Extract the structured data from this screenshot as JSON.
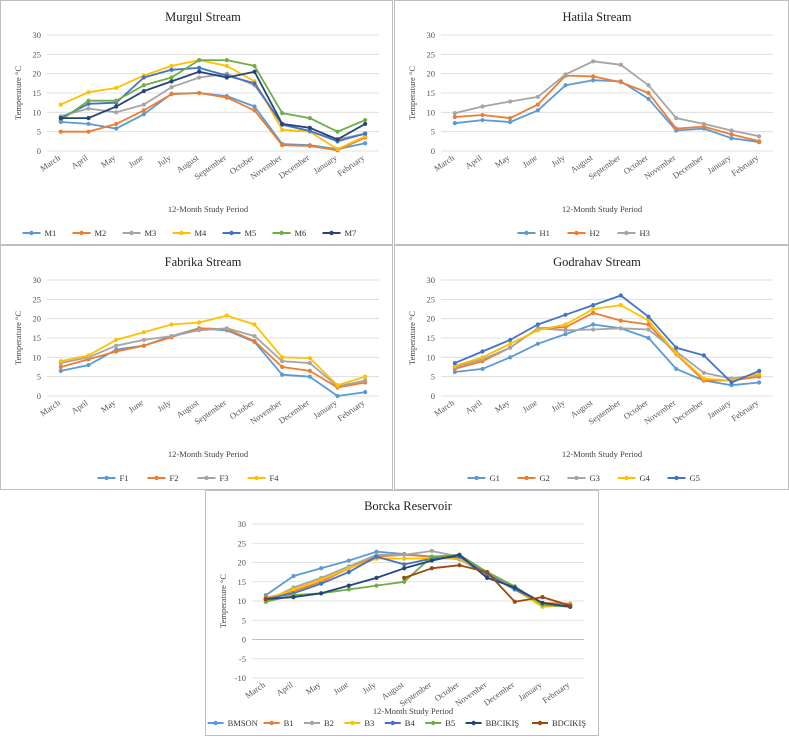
{
  "chart_data": [
    {
      "type": "line",
      "title": "Murgul Stream",
      "xlabel": "12-Month Study Period",
      "ylabel": "Temperature °C",
      "ylim": [
        0,
        30
      ],
      "yticks": [
        0,
        5,
        10,
        15,
        20,
        25,
        30
      ],
      "grid": true,
      "legend": "bottom",
      "categories": [
        "March",
        "April",
        "May",
        "June",
        "July",
        "August",
        "September",
        "October",
        "November",
        "December",
        "January",
        "February"
      ],
      "series": [
        {
          "name": "M1",
          "color": "#5b9bd5",
          "values": [
            7.5,
            7,
            5.8,
            9.5,
            14.8,
            15,
            14.2,
            11.5,
            1.8,
            1.5,
            0.5,
            2
          ]
        },
        {
          "name": "M2",
          "color": "#ed7d31",
          "values": [
            5,
            5,
            7,
            10.5,
            14.7,
            15,
            13.8,
            10.5,
            1.5,
            1.3,
            0.2,
            3.5
          ]
        },
        {
          "name": "M3",
          "color": "#a5a5a5",
          "values": [
            9,
            11,
            10,
            12,
            16.5,
            19,
            20,
            17,
            7,
            5,
            3,
            4.5
          ]
        },
        {
          "name": "M4",
          "color": "#ffc000",
          "values": [
            12,
            15.2,
            16.3,
            19.5,
            22,
            23.5,
            22,
            18,
            5.5,
            5,
            0.5,
            3.8
          ]
        },
        {
          "name": "M5",
          "color": "#4472c4",
          "values": [
            8.5,
            12.2,
            12.5,
            19,
            21,
            21.5,
            19.5,
            17.5,
            6.8,
            5.2,
            2.5,
            4.5
          ]
        },
        {
          "name": "M6",
          "color": "#70ad47",
          "values": [
            8,
            13,
            13,
            17,
            19,
            23.5,
            23.5,
            22,
            9.8,
            8.5,
            5,
            8
          ]
        },
        {
          "name": "M7",
          "color": "#264478",
          "values": [
            8.5,
            8.5,
            11.5,
            15.5,
            18,
            20.5,
            19,
            20.5,
            7,
            6,
            3,
            7
          ]
        }
      ]
    },
    {
      "type": "line",
      "title": "Hatila Stream",
      "xlabel": "12-Month Study Period",
      "ylabel": "Temperature °C",
      "ylim": [
        0,
        30
      ],
      "yticks": [
        0,
        5,
        10,
        15,
        20,
        25,
        30
      ],
      "grid": true,
      "legend": "bottom",
      "categories": [
        "March",
        "April",
        "May",
        "June",
        "July",
        "August",
        "September",
        "October",
        "November",
        "December",
        "January",
        "February"
      ],
      "series": [
        {
          "name": "H1",
          "color": "#5b9bd5",
          "values": [
            7.2,
            8,
            7.5,
            10.5,
            17,
            18.3,
            18,
            13.5,
            5.3,
            5.8,
            3.3,
            2.3
          ]
        },
        {
          "name": "H2",
          "color": "#ed7d31",
          "values": [
            8.8,
            9.3,
            8.5,
            12,
            19.5,
            19.3,
            17.8,
            15,
            5.8,
            6.3,
            4.3,
            2.5
          ]
        },
        {
          "name": "H3",
          "color": "#a5a5a5",
          "values": [
            9.8,
            11.5,
            12.8,
            14,
            19.8,
            23.2,
            22.3,
            17,
            8.5,
            7,
            5.3,
            3.8
          ]
        }
      ]
    },
    {
      "type": "line",
      "title": "Fabrika Stream",
      "xlabel": "12-Month Study Period",
      "ylabel": "Temperature °C",
      "ylim": [
        0,
        30
      ],
      "yticks": [
        0,
        5,
        10,
        15,
        20,
        25,
        30
      ],
      "grid": true,
      "legend": "bottom",
      "categories": [
        "March",
        "April",
        "May",
        "June",
        "July",
        "August",
        "September",
        "October",
        "November",
        "December",
        "January",
        "February"
      ],
      "series": [
        {
          "name": "F1",
          "color": "#5b9bd5",
          "values": [
            6.5,
            8,
            12,
            13,
            15.5,
            17.5,
            17,
            14,
            5.5,
            5,
            0,
            1
          ]
        },
        {
          "name": "F2",
          "color": "#ed7d31",
          "values": [
            7.5,
            9.5,
            11.5,
            13,
            15.2,
            17.5,
            17.3,
            14.2,
            7.5,
            6.5,
            2.2,
            3.5
          ]
        },
        {
          "name": "F3",
          "color": "#a5a5a5",
          "values": [
            8.5,
            10,
            13,
            14.5,
            15.5,
            17,
            17.5,
            15.5,
            9,
            8.5,
            2.5,
            4
          ]
        },
        {
          "name": "F4",
          "color": "#ffc000",
          "values": [
            9,
            10.5,
            14.5,
            16.5,
            18.5,
            19,
            20.8,
            18.5,
            10,
            9.8,
            2.8,
            5
          ]
        }
      ]
    },
    {
      "type": "line",
      "title": "Godrahav Stream",
      "xlabel": "12-Month Study Period",
      "ylabel": "Temperature °C",
      "ylim": [
        0,
        30
      ],
      "yticks": [
        0,
        5,
        10,
        15,
        20,
        25,
        30
      ],
      "grid": true,
      "legend": "bottom",
      "categories": [
        "March",
        "April",
        "May",
        "June",
        "July",
        "August",
        "September",
        "October",
        "November",
        "December",
        "January",
        "February"
      ],
      "series": [
        {
          "name": "G1",
          "color": "#5b9bd5",
          "values": [
            6.2,
            7,
            10,
            13.5,
            16,
            18.5,
            17.5,
            15,
            7,
            4,
            2.8,
            3.5
          ]
        },
        {
          "name": "G2",
          "color": "#ed7d31",
          "values": [
            7,
            9,
            12.5,
            17.5,
            17.8,
            21.5,
            19.5,
            18.5,
            10.8,
            4,
            4,
            5
          ]
        },
        {
          "name": "G3",
          "color": "#a5a5a5",
          "values": [
            7.5,
            9.5,
            12.5,
            17.5,
            17,
            17.2,
            17.5,
            17.2,
            11.5,
            6,
            4.5,
            5.5
          ]
        },
        {
          "name": "G4",
          "color": "#ffc000",
          "values": [
            7.8,
            10,
            13.5,
            17,
            18.5,
            22.5,
            23.5,
            19.5,
            11,
            4.5,
            4,
            5.8
          ]
        },
        {
          "name": "G5",
          "color": "#4472c4",
          "values": [
            8.5,
            11.5,
            14.5,
            18.5,
            21,
            23.5,
            26,
            20.5,
            12.5,
            10.5,
            3.5,
            6.5
          ]
        }
      ]
    },
    {
      "type": "line",
      "title": "Borcka Reservoir",
      "xlabel": "12-Month Study Period",
      "ylabel": "Temperature °C",
      "ylim": [
        -10,
        30
      ],
      "yticks": [
        -10,
        -5,
        0,
        5,
        10,
        15,
        20,
        25,
        30
      ],
      "grid": true,
      "legend": "bottom",
      "categories": [
        "March",
        "April",
        "May",
        "June",
        "July",
        "August",
        "September",
        "October",
        "November",
        "December",
        "January",
        "February"
      ],
      "series": [
        {
          "name": "BMSON",
          "color": "#5b9bd5",
          "values": [
            11.5,
            16.5,
            18.5,
            20.5,
            22.8,
            22.2,
            21.5,
            20.8,
            16.8,
            13,
            9.5,
            8.5
          ]
        },
        {
          "name": "B1",
          "color": "#ed7d31",
          "values": [
            10.8,
            12.5,
            15,
            18.5,
            21.5,
            22,
            21.5,
            21.5,
            17,
            13.5,
            9.5,
            9.3
          ]
        },
        {
          "name": "B2",
          "color": "#a5a5a5",
          "values": [
            10,
            13.5,
            16,
            19,
            22,
            22,
            23,
            21.5,
            17,
            13.2,
            9,
            9.2
          ]
        },
        {
          "name": "B3",
          "color": "#ffc000",
          "values": [
            10.5,
            13,
            15.5,
            18.5,
            21,
            21,
            21,
            21,
            17,
            13,
            8.5,
            9
          ]
        },
        {
          "name": "B4",
          "color": "#4472c4",
          "values": [
            10.5,
            12,
            14.5,
            17.5,
            21.5,
            19.5,
            21,
            21.5,
            17,
            13,
            9.5,
            8.5
          ]
        },
        {
          "name": "B5",
          "color": "#70ad47",
          "values": [
            9.8,
            11.5,
            12,
            13,
            14,
            15,
            21.5,
            22,
            17.5,
            13.8,
            9,
            8.5
          ]
        },
        {
          "name": "BBCIKIŞ",
          "color": "#264478",
          "values": [
            10.5,
            11,
            12,
            14,
            16,
            18.5,
            20.5,
            22,
            16,
            13.5,
            9.5,
            8.5
          ]
        },
        {
          "name": "BDCIKIŞ",
          "color": "#9e480e",
          "values": [
            10.5,
            null,
            null,
            null,
            null,
            16,
            18.5,
            19.3,
            17.5,
            9.8,
            11,
            8.8
          ]
        }
      ]
    }
  ]
}
